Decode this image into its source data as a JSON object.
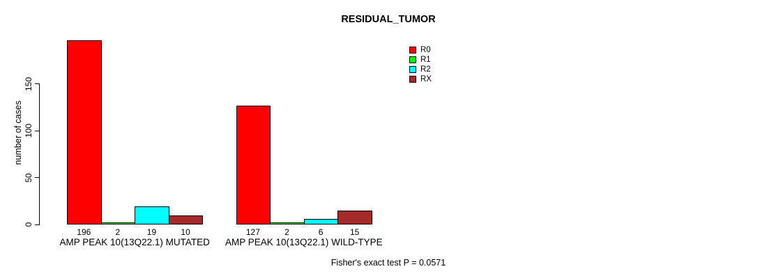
{
  "chart_data": {
    "type": "bar",
    "title": "RESIDUAL_TUMOR",
    "xlabel": "",
    "ylabel": "number of cases",
    "ylim": [
      0,
      150
    ],
    "yticks": [
      0,
      50,
      100,
      150
    ],
    "grid": false,
    "legend_position": "top-right",
    "bar_value_labels": true,
    "categories": [
      "AMP PEAK 10(13Q22.1) MUTATED",
      "AMP PEAK 10(13Q22.1) WILD-TYPE"
    ],
    "series": [
      {
        "name": "R0",
        "color": "#FF0000",
        "values": [
          196,
          127
        ]
      },
      {
        "name": "R1",
        "color": "#00FF00",
        "values": [
          2,
          2
        ]
      },
      {
        "name": "R2",
        "color": "#00FFFF",
        "values": [
          19,
          6
        ]
      },
      {
        "name": "RX",
        "color": "#A52A2A",
        "values": [
          10,
          15
        ]
      }
    ],
    "annotation": "Fisher's exact test P = 0.0571"
  },
  "colors": {
    "background": "#FFFFFF",
    "axis": "#000000",
    "text": "#000000"
  }
}
